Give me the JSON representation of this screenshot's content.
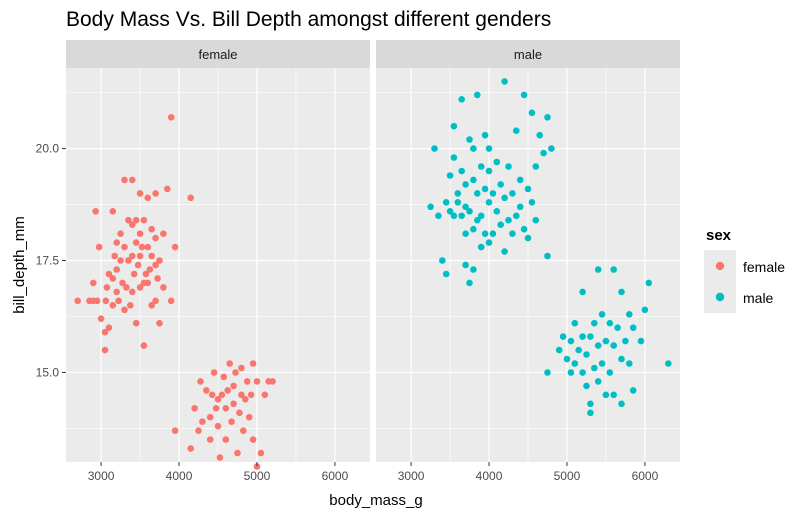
{
  "chart_data": {
    "type": "scatter",
    "title": "Body Mass Vs. Bill Depth amongst different genders",
    "xlabel": "body_mass_g",
    "ylabel": "bill_depth_mm",
    "xlim": [
      2550,
      6450
    ],
    "ylim": [
      13.0,
      21.8
    ],
    "x_ticks": [
      "3000",
      "4000",
      "5000",
      "6000"
    ],
    "y_ticks": [
      "15.0",
      "17.5",
      "20.0"
    ],
    "grid": true,
    "legend": {
      "title": "sex",
      "position": "right"
    },
    "panels": [
      {
        "label": "female",
        "series": "female"
      },
      {
        "label": "male",
        "series": "male"
      }
    ],
    "series": [
      {
        "name": "female",
        "color": "#F8766D",
        "points": [
          [
            2700,
            16.6
          ],
          [
            2850,
            16.6
          ],
          [
            2900,
            17.0
          ],
          [
            2900,
            16.6
          ],
          [
            2930,
            18.6
          ],
          [
            2950,
            16.6
          ],
          [
            2975,
            17.8
          ],
          [
            3000,
            16.2
          ],
          [
            3050,
            15.5
          ],
          [
            3050,
            15.9
          ],
          [
            3060,
            16.6
          ],
          [
            3075,
            16.9
          ],
          [
            3100,
            16.0
          ],
          [
            3100,
            17.2
          ],
          [
            3150,
            16.5
          ],
          [
            3150,
            17.1
          ],
          [
            3150,
            18.6
          ],
          [
            3175,
            17.6
          ],
          [
            3200,
            16.8
          ],
          [
            3200,
            17.3
          ],
          [
            3200,
            17.9
          ],
          [
            3225,
            16.6
          ],
          [
            3250,
            17.5
          ],
          [
            3250,
            18.1
          ],
          [
            3275,
            17.0
          ],
          [
            3300,
            16.4
          ],
          [
            3300,
            17.8
          ],
          [
            3300,
            19.3
          ],
          [
            3325,
            16.9
          ],
          [
            3350,
            17.5
          ],
          [
            3350,
            18.4
          ],
          [
            3375,
            16.5
          ],
          [
            3400,
            16.8
          ],
          [
            3400,
            17.6
          ],
          [
            3400,
            18.3
          ],
          [
            3400,
            19.3
          ],
          [
            3425,
            17.2
          ],
          [
            3450,
            16.1
          ],
          [
            3450,
            17.9
          ],
          [
            3450,
            18.4
          ],
          [
            3475,
            17.4
          ],
          [
            3500,
            16.9
          ],
          [
            3500,
            17.6
          ],
          [
            3500,
            18.1
          ],
          [
            3500,
            19.0
          ],
          [
            3525,
            17.8
          ],
          [
            3550,
            15.6
          ],
          [
            3550,
            17.0
          ],
          [
            3550,
            18.4
          ],
          [
            3575,
            17.2
          ],
          [
            3600,
            17.0
          ],
          [
            3600,
            17.8
          ],
          [
            3600,
            18.9
          ],
          [
            3625,
            17.3
          ],
          [
            3650,
            16.5
          ],
          [
            3650,
            17.6
          ],
          [
            3650,
            18.2
          ],
          [
            3700,
            16.6
          ],
          [
            3700,
            17.4
          ],
          [
            3700,
            18.0
          ],
          [
            3700,
            19.0
          ],
          [
            3725,
            17.1
          ],
          [
            3750,
            16.1
          ],
          [
            3750,
            17.5
          ],
          [
            3800,
            16.9
          ],
          [
            3800,
            18.1
          ],
          [
            3850,
            19.1
          ],
          [
            3900,
            16.6
          ],
          [
            3900,
            20.7
          ],
          [
            3950,
            17.8
          ],
          [
            4150,
            18.9
          ],
          [
            3950,
            13.7
          ],
          [
            4150,
            13.3
          ],
          [
            4200,
            14.2
          ],
          [
            4250,
            13.7
          ],
          [
            4275,
            14.8
          ],
          [
            4300,
            13.9
          ],
          [
            4350,
            14.6
          ],
          [
            4400,
            13.5
          ],
          [
            4400,
            14.0
          ],
          [
            4425,
            14.5
          ],
          [
            4450,
            15.0
          ],
          [
            4475,
            14.2
          ],
          [
            4500,
            13.8
          ],
          [
            4500,
            14.4
          ],
          [
            4525,
            13.1
          ],
          [
            4550,
            14.5
          ],
          [
            4575,
            14.9
          ],
          [
            4600,
            13.5
          ],
          [
            4600,
            14.2
          ],
          [
            4625,
            14.6
          ],
          [
            4650,
            15.2
          ],
          [
            4675,
            13.9
          ],
          [
            4700,
            14.3
          ],
          [
            4700,
            14.7
          ],
          [
            4725,
            15.0
          ],
          [
            4750,
            13.2
          ],
          [
            4775,
            14.1
          ],
          [
            4800,
            14.5
          ],
          [
            4800,
            15.1
          ],
          [
            4825,
            13.7
          ],
          [
            4850,
            14.4
          ],
          [
            4875,
            14.8
          ],
          [
            4900,
            14.0
          ],
          [
            4925,
            14.5
          ],
          [
            4950,
            13.5
          ],
          [
            4950,
            15.2
          ],
          [
            5000,
            12.9
          ],
          [
            5000,
            14.8
          ],
          [
            5050,
            13.2
          ],
          [
            5100,
            14.5
          ],
          [
            5150,
            14.8
          ],
          [
            5200,
            14.8
          ]
        ]
      },
      {
        "name": "male",
        "color": "#00BFC4",
        "points": [
          [
            3250,
            18.7
          ],
          [
            3300,
            20.0
          ],
          [
            3350,
            18.5
          ],
          [
            3400,
            17.5
          ],
          [
            3450,
            17.2
          ],
          [
            3450,
            18.8
          ],
          [
            3500,
            18.6
          ],
          [
            3500,
            19.4
          ],
          [
            3550,
            18.5
          ],
          [
            3550,
            19.8
          ],
          [
            3550,
            20.5
          ],
          [
            3600,
            18.8
          ],
          [
            3600,
            19.0
          ],
          [
            3650,
            18.5
          ],
          [
            3650,
            19.5
          ],
          [
            3650,
            21.1
          ],
          [
            3700,
            17.4
          ],
          [
            3700,
            18.1
          ],
          [
            3700,
            18.7
          ],
          [
            3700,
            19.2
          ],
          [
            3750,
            17.0
          ],
          [
            3750,
            18.6
          ],
          [
            3750,
            20.2
          ],
          [
            3800,
            17.3
          ],
          [
            3800,
            18.2
          ],
          [
            3800,
            19.3
          ],
          [
            3800,
            20.0
          ],
          [
            3850,
            18.4
          ],
          [
            3850,
            19.0
          ],
          [
            3850,
            21.2
          ],
          [
            3900,
            17.8
          ],
          [
            3900,
            18.5
          ],
          [
            3900,
            19.6
          ],
          [
            3950,
            18.1
          ],
          [
            3950,
            19.1
          ],
          [
            3950,
            20.3
          ],
          [
            4000,
            17.9
          ],
          [
            4000,
            18.8
          ],
          [
            4000,
            19.5
          ],
          [
            4000,
            20.0
          ],
          [
            4050,
            18.1
          ],
          [
            4050,
            19.0
          ],
          [
            4100,
            18.6
          ],
          [
            4100,
            19.7
          ],
          [
            4150,
            18.3
          ],
          [
            4150,
            19.2
          ],
          [
            4200,
            17.7
          ],
          [
            4200,
            18.9
          ],
          [
            4200,
            21.5
          ],
          [
            4250,
            18.4
          ],
          [
            4250,
            19.6
          ],
          [
            4300,
            18.1
          ],
          [
            4300,
            19.0
          ],
          [
            4350,
            18.5
          ],
          [
            4350,
            20.4
          ],
          [
            4400,
            18.7
          ],
          [
            4400,
            19.3
          ],
          [
            4450,
            18.2
          ],
          [
            4450,
            21.2
          ],
          [
            4500,
            18.0
          ],
          [
            4500,
            19.1
          ],
          [
            4550,
            18.8
          ],
          [
            4550,
            20.8
          ],
          [
            4600,
            18.4
          ],
          [
            4600,
            19.6
          ],
          [
            4650,
            20.3
          ],
          [
            4700,
            19.9
          ],
          [
            4750,
            17.6
          ],
          [
            4750,
            20.7
          ],
          [
            4800,
            20.0
          ],
          [
            4750,
            15.0
          ],
          [
            4900,
            15.5
          ],
          [
            4950,
            15.8
          ],
          [
            5000,
            15.3
          ],
          [
            5050,
            15.0
          ],
          [
            5050,
            15.7
          ],
          [
            5100,
            15.2
          ],
          [
            5100,
            16.1
          ],
          [
            5150,
            15.5
          ],
          [
            5200,
            15.0
          ],
          [
            5200,
            15.8
          ],
          [
            5200,
            16.8
          ],
          [
            5250,
            14.7
          ],
          [
            5250,
            15.4
          ],
          [
            5300,
            14.1
          ],
          [
            5300,
            14.3
          ],
          [
            5300,
            15.8
          ],
          [
            5350,
            15.1
          ],
          [
            5350,
            16.1
          ],
          [
            5400,
            14.8
          ],
          [
            5400,
            15.6
          ],
          [
            5400,
            17.3
          ],
          [
            5450,
            15.2
          ],
          [
            5450,
            16.3
          ],
          [
            5500,
            14.5
          ],
          [
            5500,
            15.7
          ],
          [
            5550,
            15.0
          ],
          [
            5550,
            16.1
          ],
          [
            5600,
            14.5
          ],
          [
            5600,
            15.6
          ],
          [
            5600,
            17.3
          ],
          [
            5650,
            16.0
          ],
          [
            5700,
            14.3
          ],
          [
            5700,
            15.3
          ],
          [
            5700,
            16.8
          ],
          [
            5750,
            15.7
          ],
          [
            5800,
            15.2
          ],
          [
            5800,
            16.3
          ],
          [
            5850,
            14.6
          ],
          [
            5850,
            16.0
          ],
          [
            5950,
            15.7
          ],
          [
            6000,
            16.4
          ],
          [
            6050,
            17.0
          ],
          [
            6300,
            15.2
          ]
        ]
      }
    ]
  }
}
